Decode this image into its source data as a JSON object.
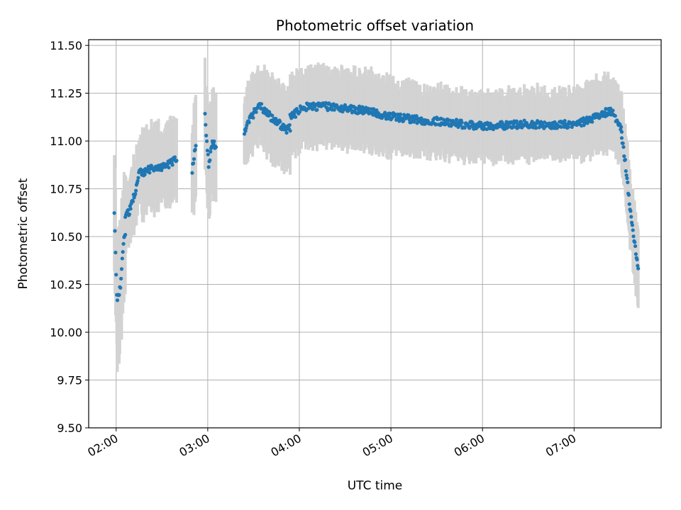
{
  "chart_data": {
    "type": "scatter",
    "title": "Photometric offset variation",
    "xlabel": "UTC time",
    "ylabel": "Photometric offset",
    "x_unit": "hours UTC",
    "xlim": [
      1.7,
      7.95
    ],
    "ylim": [
      9.5,
      11.53
    ],
    "x_ticks": [
      {
        "value": 2,
        "label": "02:00"
      },
      {
        "value": 3,
        "label": "03:00"
      },
      {
        "value": 4,
        "label": "04:00"
      },
      {
        "value": 5,
        "label": "05:00"
      },
      {
        "value": 6,
        "label": "06:00"
      },
      {
        "value": 7,
        "label": "07:00"
      }
    ],
    "y_ticks": [
      {
        "value": 9.5,
        "label": "9.50"
      },
      {
        "value": 9.75,
        "label": "9.75"
      },
      {
        "value": 10.0,
        "label": "10.00"
      },
      {
        "value": 10.25,
        "label": "10.25"
      },
      {
        "value": 10.5,
        "label": "10.50"
      },
      {
        "value": 10.75,
        "label": "10.75"
      },
      {
        "value": 11.0,
        "label": "11.00"
      },
      {
        "value": 11.25,
        "label": "11.25"
      },
      {
        "value": 11.5,
        "label": "11.50"
      }
    ],
    "grid": true,
    "colors": {
      "points": "#1f77b4",
      "error_bars": "#d3d3d3",
      "grid": "#b0b0b0"
    },
    "segments": [
      {
        "x_range": [
          1.98,
          2.1
        ],
        "keypoints": [
          [
            1.98,
            10.62
          ],
          [
            2.0,
            10.3
          ],
          [
            2.01,
            10.17
          ],
          [
            2.05,
            10.24
          ],
          [
            2.08,
            10.48
          ],
          [
            2.1,
            10.53
          ]
        ],
        "err": 0.3
      },
      {
        "x_range": [
          2.1,
          2.28
        ],
        "keypoints": [
          [
            2.1,
            10.6
          ],
          [
            2.15,
            10.64
          ],
          [
            2.2,
            10.72
          ],
          [
            2.25,
            10.83
          ],
          [
            2.28,
            10.85
          ]
        ],
        "err": 0.17
      },
      {
        "x_range": [
          2.28,
          2.66
        ],
        "keypoints": [
          [
            2.28,
            10.83
          ],
          [
            2.35,
            10.85
          ],
          [
            2.45,
            10.86
          ],
          [
            2.55,
            10.87
          ],
          [
            2.66,
            10.91
          ]
        ],
        "err": 0.2
      },
      {
        "x_range": [
          2.83,
          2.87
        ],
        "keypoints": [
          [
            2.83,
            10.85
          ],
          [
            2.85,
            10.92
          ],
          [
            2.87,
            10.98
          ]
        ],
        "err": 0.25
      },
      {
        "x_range": [
          2.97,
          3.09
        ],
        "keypoints": [
          [
            2.97,
            11.13
          ],
          [
            3.01,
            10.88
          ],
          [
            3.05,
            10.98
          ],
          [
            3.09,
            10.98
          ]
        ],
        "err": 0.27
      },
      {
        "x_range": [
          3.4,
          3.58
        ],
        "keypoints": [
          [
            3.4,
            11.05
          ],
          [
            3.45,
            11.1
          ],
          [
            3.52,
            11.16
          ],
          [
            3.58,
            11.18
          ]
        ],
        "err": 0.18
      },
      {
        "x_range": [
          3.58,
          3.9
        ],
        "keypoints": [
          [
            3.58,
            11.18
          ],
          [
            3.68,
            11.13
          ],
          [
            3.78,
            11.09
          ],
          [
            3.85,
            11.06
          ],
          [
            3.9,
            11.07
          ]
        ],
        "err": 0.19
      },
      {
        "x_range": [
          3.9,
          5.0
        ],
        "keypoints": [
          [
            3.9,
            11.12
          ],
          [
            4.05,
            11.18
          ],
          [
            4.3,
            11.18
          ],
          [
            4.55,
            11.17
          ],
          [
            4.8,
            11.15
          ],
          [
            5.0,
            11.13
          ]
        ],
        "err": 0.18
      },
      {
        "x_range": [
          5.0,
          7.1
        ],
        "keypoints": [
          [
            5.0,
            11.13
          ],
          [
            5.3,
            11.11
          ],
          [
            5.6,
            11.1
          ],
          [
            5.9,
            11.08
          ],
          [
            6.2,
            11.08
          ],
          [
            6.5,
            11.09
          ],
          [
            6.8,
            11.08
          ],
          [
            7.1,
            11.1
          ]
        ],
        "err": 0.16
      },
      {
        "x_range": [
          7.1,
          7.52
        ],
        "keypoints": [
          [
            7.1,
            11.1
          ],
          [
            7.25,
            11.13
          ],
          [
            7.4,
            11.16
          ],
          [
            7.48,
            11.1
          ],
          [
            7.52,
            11.05
          ]
        ],
        "err": 0.17
      },
      {
        "x_range": [
          7.52,
          7.7
        ],
        "keypoints": [
          [
            7.52,
            11.02
          ],
          [
            7.56,
            10.88
          ],
          [
            7.6,
            10.7
          ],
          [
            7.65,
            10.5
          ],
          [
            7.7,
            10.34
          ]
        ],
        "err": 0.18
      }
    ]
  }
}
